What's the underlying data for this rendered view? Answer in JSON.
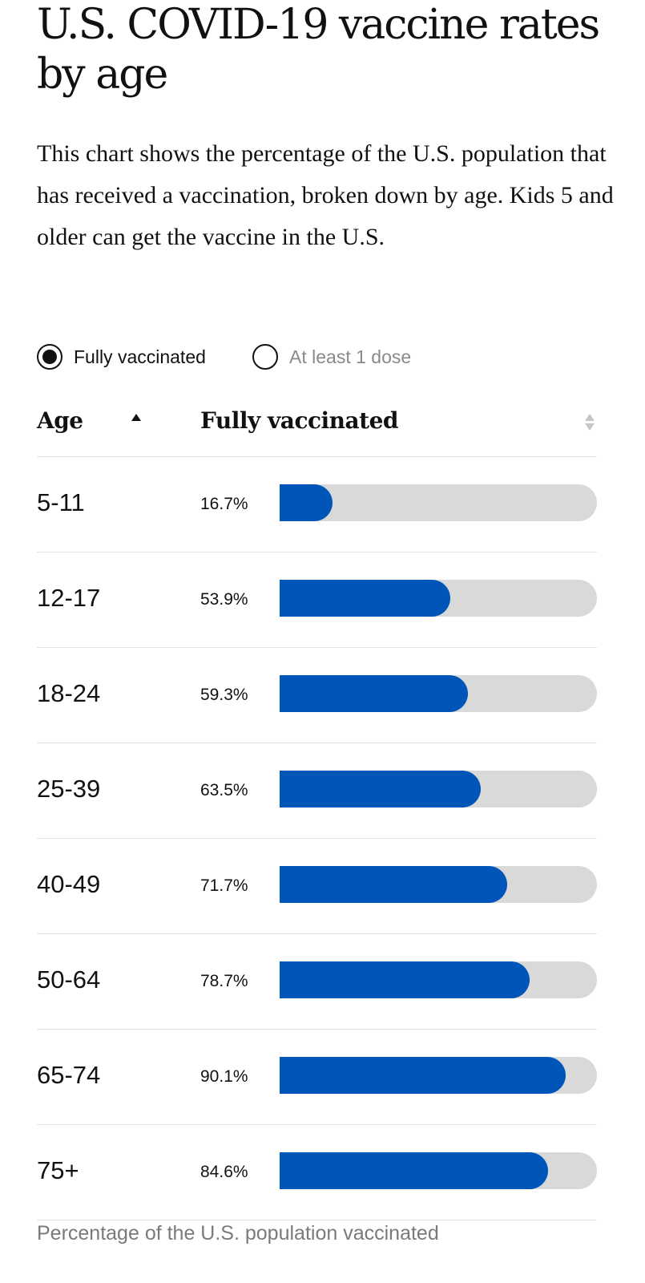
{
  "title": "U.S. COVID-19 vaccine rates by age",
  "subtitle": "This chart shows the percentage of the U.S. population that has received a vaccination, broken down by age. Kids 5 and older can get the vaccine in the U.S.",
  "toggles": [
    {
      "label": "Fully vaccinated",
      "selected": true
    },
    {
      "label": "At least 1 dose",
      "selected": false
    }
  ],
  "table_header": {
    "age_label": "Age",
    "value_label": "Fully vaccinated",
    "age_sort": "ascending",
    "value_sort": "none"
  },
  "colors": {
    "bar_fill": "#0056b8",
    "bar_track": "#d9d9d9"
  },
  "footer": "Percentage of the U.S. population vaccinated",
  "chart_data": {
    "type": "bar",
    "orientation": "horizontal",
    "title": "U.S. COVID-19 vaccine rates by age",
    "categories": [
      "5-11",
      "12-17",
      "18-24",
      "25-39",
      "40-49",
      "50-64",
      "65-74",
      "75+"
    ],
    "series": [
      {
        "name": "Fully vaccinated",
        "values": [
          16.7,
          53.9,
          59.3,
          63.5,
          71.7,
          78.7,
          90.1,
          84.6
        ]
      }
    ],
    "value_labels": [
      "16.7%",
      "53.9%",
      "59.3%",
      "63.5%",
      "71.7%",
      "78.7%",
      "90.1%",
      "84.6%"
    ],
    "xlim": [
      0,
      100
    ],
    "unit": "%",
    "xlabel": "Percentage of the U.S. population vaccinated",
    "ylabel": "Age",
    "grid": false,
    "legend": "none"
  }
}
